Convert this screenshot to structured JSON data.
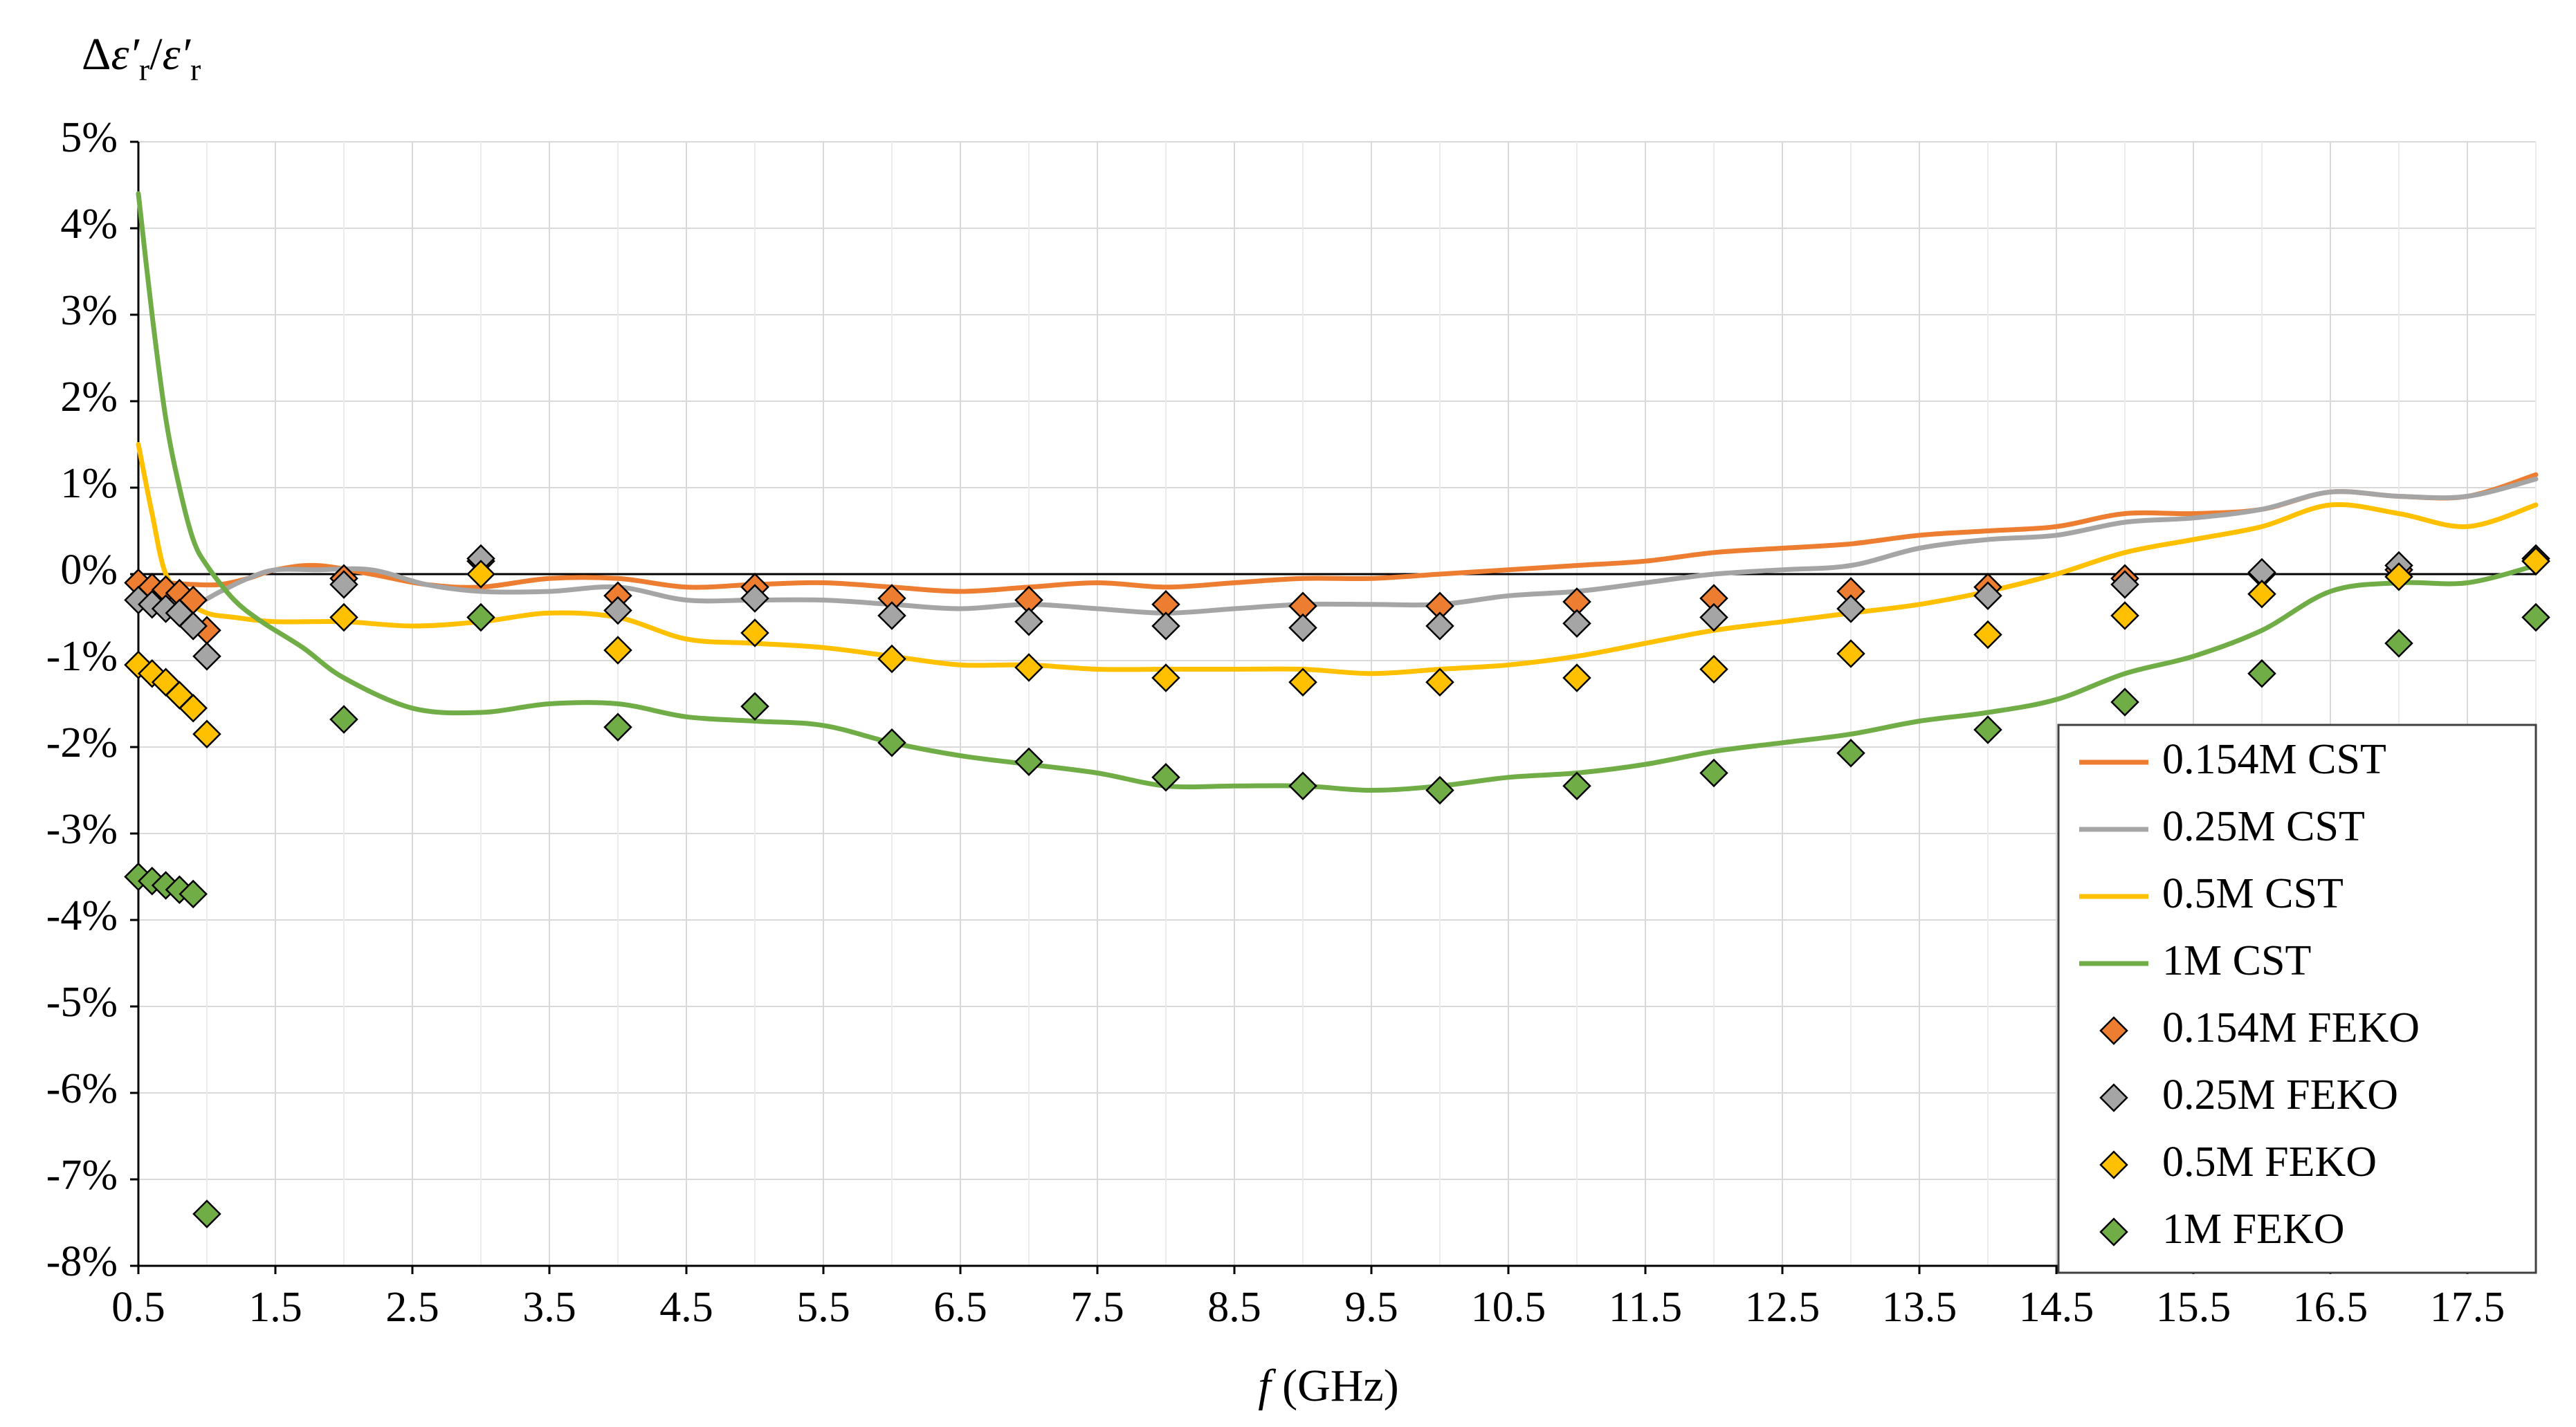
{
  "chart_data": {
    "type": "scatter",
    "title": "",
    "ylabel": "Δε′r/ε′r",
    "ylabel_parts": {
      "delta": "Δ",
      "eps1": "ε′",
      "sub1": "r",
      "slash": "/",
      "eps2": "ε′",
      "sub2": "r"
    },
    "xlabel": "f (GHz)",
    "xlabel_parts": {
      "f": "f",
      "unit": " (GHz)"
    },
    "xlim": [
      0.5,
      18
    ],
    "ylim": [
      -8,
      5
    ],
    "grid": true,
    "legend_position": "right",
    "x_ticks": [
      0.5,
      1.5,
      2.5,
      3.5,
      4.5,
      5.5,
      6.5,
      7.5,
      8.5,
      9.5,
      10.5,
      11.5,
      12.5,
      13.5,
      14.5,
      15.5,
      16.5,
      17.5
    ],
    "x_tick_labels": [
      "0.5",
      "1.5",
      "2.5",
      "3.5",
      "4.5",
      "5.5",
      "6.5",
      "7.5",
      "8.5",
      "9.5",
      "10.5",
      "11.5",
      "12.5",
      "13.5",
      "14.5",
      "15.5",
      "16.5",
      "17.5"
    ],
    "y_ticks": [
      5,
      4,
      3,
      2,
      1,
      0,
      -1,
      -2,
      -3,
      -4,
      -5,
      -6,
      -7,
      -8
    ],
    "y_tick_labels": [
      "5%",
      "4%",
      "3%",
      "2%",
      "1%",
      "0%",
      "-1%",
      "-2%",
      "-3%",
      "-4%",
      "-5%",
      "-6%",
      "-7%",
      "-8%"
    ],
    "series": [
      {
        "name": "0.154M CST",
        "kind": "line",
        "color": "#ED7D31",
        "x": [
          0.5,
          0.7,
          0.9,
          1.1,
          1.3,
          1.5,
          1.8,
          2.2,
          2.6,
          3,
          3.5,
          4,
          4.5,
          5,
          5.5,
          6,
          6.5,
          7,
          7.5,
          8,
          8.5,
          9,
          9.5,
          10,
          10.5,
          11,
          11.5,
          12,
          12.5,
          13,
          13.5,
          14,
          14.5,
          15,
          15.5,
          16,
          16.5,
          17,
          17.5,
          18
        ],
        "y": [
          -0.1,
          -0.1,
          -0.12,
          -0.12,
          -0.05,
          0.05,
          0.1,
          0.0,
          -0.12,
          -0.15,
          -0.05,
          -0.05,
          -0.15,
          -0.12,
          -0.1,
          -0.15,
          -0.2,
          -0.15,
          -0.1,
          -0.15,
          -0.1,
          -0.05,
          -0.05,
          0.0,
          0.05,
          0.1,
          0.15,
          0.25,
          0.3,
          0.35,
          0.45,
          0.5,
          0.55,
          0.7,
          0.7,
          0.75,
          0.95,
          0.9,
          0.9,
          1.15
        ]
      },
      {
        "name": "0.25M CST",
        "kind": "line",
        "color": "#A5A5A5",
        "x": [
          0.5,
          0.7,
          0.9,
          1.1,
          1.3,
          1.5,
          1.8,
          2.2,
          2.6,
          3,
          3.5,
          4,
          4.5,
          5,
          5.5,
          6,
          6.5,
          7,
          7.5,
          8,
          8.5,
          9,
          9.5,
          10,
          10.5,
          11,
          11.5,
          12,
          12.5,
          13,
          13.5,
          14,
          14.5,
          15,
          15.5,
          16,
          16.5,
          17,
          17.5,
          18
        ],
        "y": [
          -0.3,
          -0.3,
          -0.35,
          -0.2,
          -0.05,
          0.05,
          0.05,
          0.05,
          -0.12,
          -0.2,
          -0.2,
          -0.15,
          -0.3,
          -0.3,
          -0.3,
          -0.35,
          -0.4,
          -0.35,
          -0.4,
          -0.45,
          -0.4,
          -0.35,
          -0.35,
          -0.35,
          -0.25,
          -0.2,
          -0.1,
          0.0,
          0.05,
          0.1,
          0.3,
          0.4,
          0.45,
          0.6,
          0.65,
          0.75,
          0.95,
          0.9,
          0.9,
          1.1
        ]
      },
      {
        "name": "0.5M CST",
        "kind": "line",
        "color": "#FFC000",
        "x": [
          0.5,
          0.6,
          0.7,
          0.85,
          1.0,
          1.2,
          1.5,
          2.0,
          2.5,
          3,
          3.5,
          4,
          4.5,
          5,
          5.5,
          6,
          6.5,
          7,
          7.5,
          8,
          8.5,
          9,
          9.5,
          10,
          10.5,
          11,
          11.5,
          12,
          12.5,
          13,
          13.5,
          14,
          14.5,
          15,
          15.5,
          16,
          16.5,
          17,
          17.5,
          18
        ],
        "y": [
          1.5,
          0.7,
          0.0,
          -0.3,
          -0.45,
          -0.5,
          -0.55,
          -0.55,
          -0.6,
          -0.55,
          -0.45,
          -0.5,
          -0.75,
          -0.8,
          -0.85,
          -0.95,
          -1.05,
          -1.05,
          -1.1,
          -1.1,
          -1.1,
          -1.1,
          -1.15,
          -1.1,
          -1.05,
          -0.95,
          -0.8,
          -0.65,
          -0.55,
          -0.45,
          -0.35,
          -0.2,
          0.0,
          0.25,
          0.4,
          0.55,
          0.8,
          0.7,
          0.55,
          0.8
        ]
      },
      {
        "name": "1M CST",
        "kind": "line",
        "color": "#70AD47",
        "x": [
          0.5,
          0.6,
          0.7,
          0.8,
          0.9,
          1.0,
          1.2,
          1.4,
          1.7,
          2.0,
          2.5,
          3,
          3.5,
          4,
          4.5,
          5,
          5.5,
          6,
          6.5,
          7,
          7.5,
          8,
          8.5,
          9,
          9.5,
          10,
          10.5,
          11,
          11.5,
          12,
          12.5,
          13,
          13.5,
          14,
          14.5,
          15,
          15.5,
          16,
          16.5,
          17,
          17.5,
          18
        ],
        "y": [
          4.4,
          3.0,
          1.8,
          1.0,
          0.4,
          0.1,
          -0.3,
          -0.55,
          -0.85,
          -1.2,
          -1.55,
          -1.6,
          -1.5,
          -1.5,
          -1.65,
          -1.7,
          -1.75,
          -1.95,
          -2.1,
          -2.2,
          -2.3,
          -2.45,
          -2.45,
          -2.45,
          -2.5,
          -2.45,
          -2.35,
          -2.3,
          -2.2,
          -2.05,
          -1.95,
          -1.85,
          -1.7,
          -1.6,
          -1.45,
          -1.15,
          -0.95,
          -0.65,
          -0.2,
          -0.1,
          -0.1,
          0.1
        ]
      },
      {
        "name": "0.154M FEKO",
        "kind": "scatter",
        "color": "#ED7D31",
        "x": [
          0.5,
          0.6,
          0.7,
          0.8,
          0.9,
          1,
          2,
          3,
          4,
          5,
          6,
          7,
          8,
          9,
          10,
          11,
          12,
          13,
          14,
          15,
          16,
          17,
          18
        ],
        "y": [
          -0.1,
          -0.15,
          -0.18,
          -0.22,
          -0.3,
          -0.65,
          -0.05,
          0.15,
          -0.25,
          -0.15,
          -0.28,
          -0.3,
          -0.35,
          -0.37,
          -0.37,
          -0.32,
          -0.28,
          -0.2,
          -0.15,
          -0.05,
          0.0,
          0.05,
          0.15
        ]
      },
      {
        "name": "0.25M FEKO",
        "kind": "scatter",
        "color": "#A5A5A5",
        "x": [
          0.5,
          0.6,
          0.7,
          0.8,
          0.9,
          1,
          2,
          3,
          4,
          5,
          6,
          7,
          8,
          9,
          10,
          11,
          12,
          13,
          14,
          15,
          16,
          17,
          18
        ],
        "y": [
          -0.3,
          -0.35,
          -0.4,
          -0.45,
          -0.6,
          -0.95,
          -0.12,
          0.18,
          -0.42,
          -0.28,
          -0.48,
          -0.55,
          -0.6,
          -0.62,
          -0.6,
          -0.57,
          -0.5,
          -0.4,
          -0.25,
          -0.12,
          0.02,
          0.1,
          0.18
        ]
      },
      {
        "name": "0.5M FEKO",
        "kind": "scatter",
        "color": "#FFC000",
        "x": [
          0.5,
          0.6,
          0.7,
          0.8,
          0.9,
          1,
          2,
          3,
          4,
          5,
          6,
          7,
          8,
          9,
          10,
          11,
          12,
          13,
          14,
          15,
          16,
          17,
          18
        ],
        "y": [
          -1.05,
          -1.15,
          -1.25,
          -1.4,
          -1.55,
          -1.85,
          -0.5,
          0.0,
          -0.88,
          -0.68,
          -0.98,
          -1.08,
          -1.2,
          -1.25,
          -1.25,
          -1.2,
          -1.1,
          -0.92,
          -0.7,
          -0.48,
          -0.23,
          -0.03,
          0.15
        ]
      },
      {
        "name": "1M FEKO",
        "kind": "scatter",
        "color": "#70AD47",
        "x": [
          0.5,
          0.6,
          0.7,
          0.8,
          0.9,
          1,
          2,
          3,
          4,
          5,
          6,
          7,
          8,
          9,
          10,
          11,
          12,
          13,
          14,
          15,
          16,
          17,
          18
        ],
        "y": [
          -3.5,
          -3.55,
          -3.6,
          -3.65,
          -3.7,
          -7.4,
          -1.68,
          -0.5,
          -1.77,
          -1.53,
          -1.95,
          -2.17,
          -2.35,
          -2.45,
          -2.5,
          -2.45,
          -2.3,
          -2.07,
          -1.8,
          -1.48,
          -1.15,
          -0.8,
          -0.5
        ]
      }
    ]
  }
}
